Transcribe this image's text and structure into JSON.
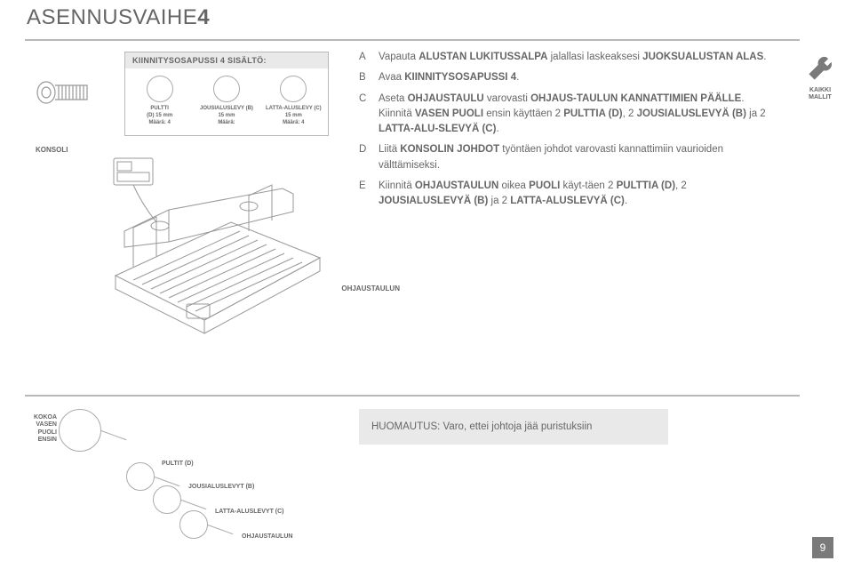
{
  "title_prefix": "ASENNUSVAIHE",
  "title_num": "4",
  "kit": {
    "header": "KIINNITYSOSAPUSSI 4 SISÄLTÖ:",
    "items": [
      {
        "line1": "PULTTI",
        "line2": "(D) 15 mm",
        "line3": "Määrä: 4"
      },
      {
        "line1": "JOUSIALUSLEVY (B)",
        "line2": "15 mm",
        "line3": "Määrä:"
      },
      {
        "line1": "LATTA-ALUSLEVY (C)",
        "line2": "15 mm",
        "line3": "Määrä: 4"
      }
    ]
  },
  "konsoli": "KONSOLI",
  "ohjaustaulun": "OHJAUSTAULUN",
  "instructions": [
    {
      "letter": "A",
      "html": "Vapauta <b>ALUSTAN LUKITUSSALPA</b> jalallasi laskeaksesi <b>JUOKSUALUSTAN ALAS</b>."
    },
    {
      "letter": "B",
      "html": "Avaa <b>KIINNITYSOSAPUSSI 4</b>."
    },
    {
      "letter": "C",
      "html": "Aseta <b>OHJAUSTAULU</b> varovasti <b>OHJAUS-TAULUN KANNATTIMIEN PÄÄLLE</b>. Kiinnitä <b>VASEN PUOLI</b> ensin käyttäen 2 <b>PULTTIA (D)</b>, 2 <b>JOUSIALUSLEVYÄ (B)</b> ja 2 <b>LATTA-ALU-SLEVYÄ (C)</b>."
    },
    {
      "letter": "D",
      "html": "Liitä <b>KONSOLIN JOHDOT</b> työntäen johdot varovasti kannattimiin vaurioiden välttämiseksi."
    },
    {
      "letter": "E",
      "html": "Kiinnitä <b>OHJAUSTAULUN</b> oikea <b>PUOLI</b> käyt-täen 2 <b>PULTTIA (D)</b>, 2 <b>JOUSIALUSLEVYÄ (B)</b> ja 2 <b>LATTA-ALUSLEVYÄ (C)</b>."
    }
  ],
  "icon_label": "KAIKKI MALLIT",
  "bl": {
    "l1": "KOKOA VASEN PUOLI ENSIN",
    "l2": "PULTIT (D)",
    "l3": "JOUSIALUSLEVYT (B)",
    "l4": "LATTA-ALUSLEVYT (C)",
    "l5": "OHJAUSTAULUN"
  },
  "note": "HUOMAUTUS: Varo, ettei johtoja jää puristuksiin",
  "page": "9"
}
